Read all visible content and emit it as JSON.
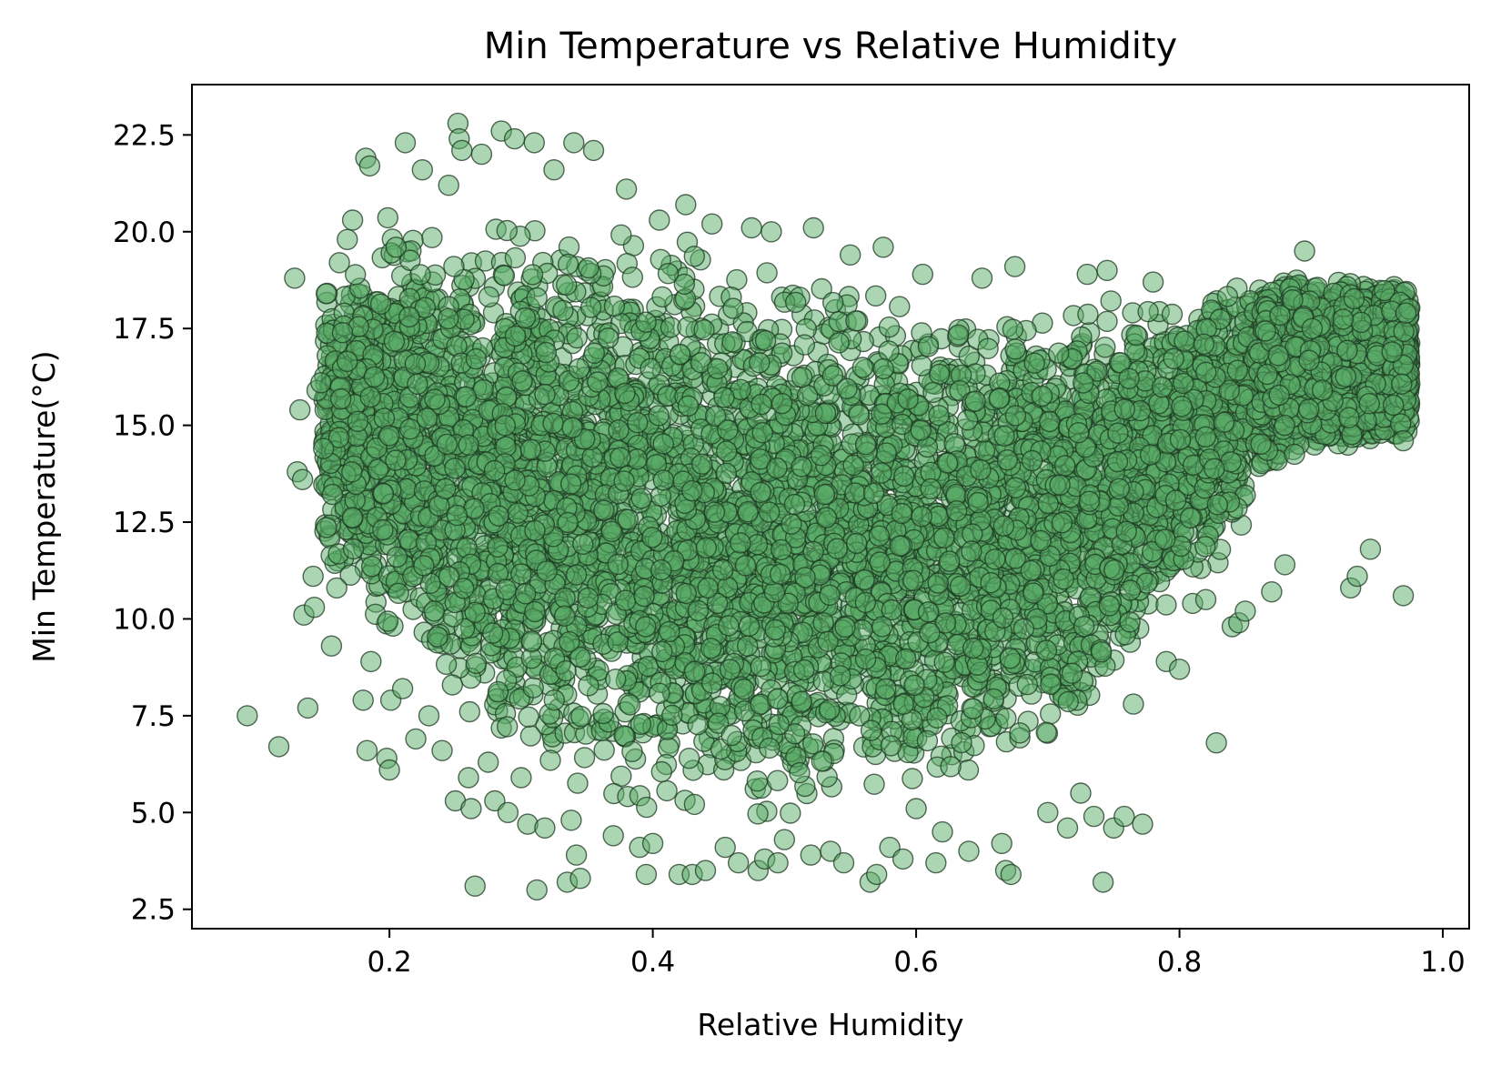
{
  "chart_data": {
    "type": "scatter",
    "title": "Min Temperature vs Relative Humidity",
    "xlabel": "Relative Humidity",
    "ylabel": "Min Temperature(°C)",
    "xlim": [
      0.05,
      1.02
    ],
    "ylim": [
      2.0,
      23.8
    ],
    "xticks": [
      0.2,
      0.4,
      0.6,
      0.8,
      1.0
    ],
    "xtick_labels": [
      "0.2",
      "0.4",
      "0.6",
      "0.8",
      "1.0"
    ],
    "yticks": [
      2.5,
      5.0,
      7.5,
      10.0,
      12.5,
      15.0,
      17.5,
      20.0,
      22.5
    ],
    "ytick_labels": [
      "2.5",
      "5.0",
      "7.5",
      "10.0",
      "12.5",
      "15.0",
      "17.5",
      "20.0",
      "22.5"
    ],
    "grid": false,
    "legend": "none",
    "marker_fill": "#5aac68",
    "marker_edge": "#1e3a22",
    "marker_alpha": 0.5,
    "series": [
      {
        "values": [
          [
            0.092,
            7.5
          ],
          [
            0.116,
            6.7
          ],
          [
            0.128,
            18.8
          ],
          [
            0.13,
            13.8
          ],
          [
            0.132,
            15.4
          ],
          [
            0.134,
            13.6
          ],
          [
            0.135,
            10.1
          ],
          [
            0.138,
            7.7
          ],
          [
            0.142,
            11.1
          ],
          [
            0.143,
            10.3
          ],
          [
            0.145,
            15.9
          ],
          [
            0.148,
            16.1
          ],
          [
            0.15,
            14.4
          ],
          [
            0.152,
            18.4
          ],
          [
            0.156,
            9.3
          ],
          [
            0.16,
            10.8
          ],
          [
            0.162,
            19.2
          ],
          [
            0.168,
            19.8
          ],
          [
            0.172,
            20.3
          ],
          [
            0.176,
            15.1
          ],
          [
            0.18,
            7.9
          ],
          [
            0.182,
            21.9
          ],
          [
            0.183,
            6.6
          ],
          [
            0.185,
            21.7
          ],
          [
            0.186,
            8.9
          ],
          [
            0.195,
            12.3
          ],
          [
            0.198,
            6.4
          ],
          [
            0.2,
            6.1
          ],
          [
            0.201,
            7.9
          ],
          [
            0.205,
            19.6
          ],
          [
            0.21,
            8.2
          ],
          [
            0.212,
            22.3
          ],
          [
            0.215,
            17.8
          ],
          [
            0.22,
            6.9
          ],
          [
            0.225,
            21.6
          ],
          [
            0.23,
            7.5
          ],
          [
            0.234,
            10.2
          ],
          [
            0.24,
            6.6
          ],
          [
            0.245,
            21.2
          ],
          [
            0.25,
            5.3
          ],
          [
            0.252,
            22.8
          ],
          [
            0.253,
            22.4
          ],
          [
            0.255,
            22.1
          ],
          [
            0.26,
            5.9
          ],
          [
            0.262,
            5.1
          ],
          [
            0.265,
            3.1
          ],
          [
            0.27,
            22.0
          ],
          [
            0.275,
            6.3
          ],
          [
            0.28,
            5.3
          ],
          [
            0.285,
            22.6
          ],
          [
            0.29,
            5.0
          ],
          [
            0.295,
            22.4
          ],
          [
            0.3,
            5.9
          ],
          [
            0.305,
            4.7
          ],
          [
            0.31,
            22.3
          ],
          [
            0.312,
            3.0
          ],
          [
            0.318,
            4.6
          ],
          [
            0.325,
            21.6
          ],
          [
            0.335,
            3.2
          ],
          [
            0.338,
            4.8
          ],
          [
            0.34,
            22.3
          ],
          [
            0.342,
            3.9
          ],
          [
            0.345,
            3.3
          ],
          [
            0.355,
            22.1
          ],
          [
            0.37,
            4.4
          ],
          [
            0.38,
            21.1
          ],
          [
            0.39,
            4.1
          ],
          [
            0.395,
            3.4
          ],
          [
            0.4,
            4.2
          ],
          [
            0.405,
            20.3
          ],
          [
            0.42,
            3.4
          ],
          [
            0.425,
            20.7
          ],
          [
            0.43,
            3.4
          ],
          [
            0.44,
            3.5
          ],
          [
            0.445,
            20.2
          ],
          [
            0.455,
            4.1
          ],
          [
            0.465,
            3.7
          ],
          [
            0.475,
            20.1
          ],
          [
            0.48,
            3.5
          ],
          [
            0.485,
            3.8
          ],
          [
            0.49,
            20.0
          ],
          [
            0.495,
            3.7
          ],
          [
            0.5,
            4.3
          ],
          [
            0.52,
            3.9
          ],
          [
            0.522,
            20.1
          ],
          [
            0.535,
            4.0
          ],
          [
            0.545,
            3.7
          ],
          [
            0.55,
            19.4
          ],
          [
            0.565,
            3.2
          ],
          [
            0.57,
            3.4
          ],
          [
            0.575,
            19.6
          ],
          [
            0.58,
            4.1
          ],
          [
            0.59,
            3.8
          ],
          [
            0.6,
            5.1
          ],
          [
            0.605,
            18.9
          ],
          [
            0.615,
            3.7
          ],
          [
            0.62,
            4.5
          ],
          [
            0.64,
            4.0
          ],
          [
            0.65,
            18.8
          ],
          [
            0.665,
            4.2
          ],
          [
            0.668,
            3.5
          ],
          [
            0.672,
            3.4
          ],
          [
            0.675,
            19.1
          ],
          [
            0.7,
            5.0
          ],
          [
            0.715,
            4.6
          ],
          [
            0.725,
            5.5
          ],
          [
            0.73,
            18.9
          ],
          [
            0.735,
            4.9
          ],
          [
            0.742,
            3.2
          ],
          [
            0.745,
            19.0
          ],
          [
            0.75,
            4.6
          ],
          [
            0.758,
            4.9
          ],
          [
            0.765,
            7.8
          ],
          [
            0.772,
            4.7
          ],
          [
            0.78,
            18.7
          ],
          [
            0.79,
            8.9
          ],
          [
            0.8,
            8.7
          ],
          [
            0.81,
            10.4
          ],
          [
            0.82,
            10.5
          ],
          [
            0.828,
            6.8
          ],
          [
            0.84,
            9.8
          ],
          [
            0.845,
            9.9
          ],
          [
            0.85,
            10.2
          ],
          [
            0.87,
            10.7
          ],
          [
            0.88,
            11.4
          ],
          [
            0.895,
            19.5
          ],
          [
            0.93,
            10.8
          ],
          [
            0.935,
            11.1
          ],
          [
            0.945,
            11.8
          ],
          [
            0.97,
            10.6
          ],
          [
            0.972,
            17.9
          ],
          [
            0.97,
            14.6
          ]
        ]
      }
    ],
    "density_model": {
      "count": 9000,
      "x_range": [
        0.15,
        0.975
      ],
      "upper_edge": [
        [
          0.15,
          18.5
        ],
        [
          0.2,
          20.5
        ],
        [
          0.3,
          20.5
        ],
        [
          0.4,
          20.0
        ],
        [
          0.5,
          19.3
        ],
        [
          0.6,
          18.2
        ],
        [
          0.7,
          18.0
        ],
        [
          0.8,
          18.5
        ],
        [
          0.9,
          18.8
        ],
        [
          0.975,
          18.7
        ]
      ],
      "lower_edge": [
        [
          0.15,
          11.5
        ],
        [
          0.2,
          9.5
        ],
        [
          0.3,
          6.0
        ],
        [
          0.4,
          4.8
        ],
        [
          0.5,
          4.8
        ],
        [
          0.6,
          5.2
        ],
        [
          0.7,
          6.5
        ],
        [
          0.8,
          10.5
        ],
        [
          0.85,
          12.0
        ],
        [
          0.9,
          12.8
        ],
        [
          0.975,
          13.2
        ]
      ]
    }
  }
}
